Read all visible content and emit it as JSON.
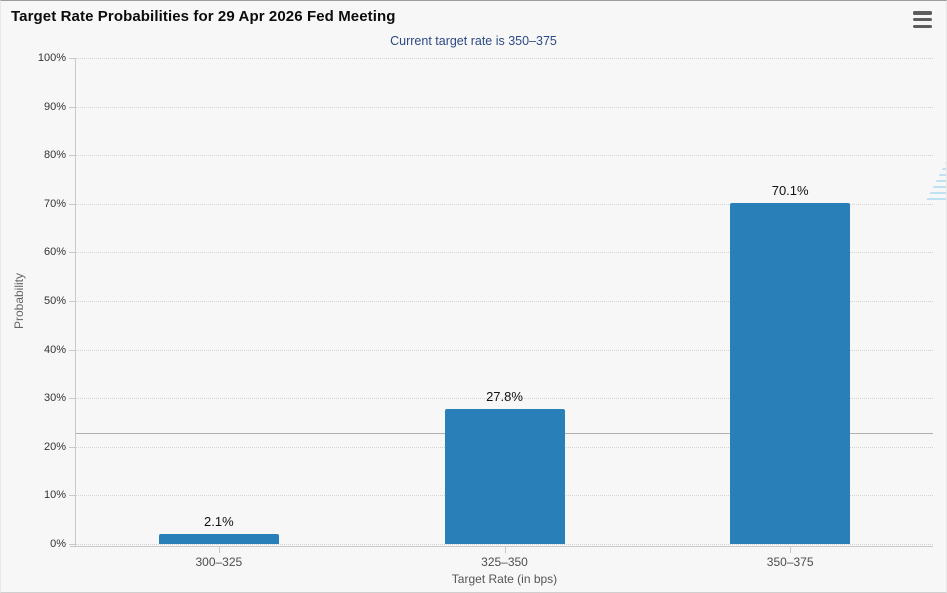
{
  "header": {
    "title": "Target Rate Probabilities for 29 Apr 2026 Fed Meeting",
    "menu_icon": "hamburger-menu-icon"
  },
  "watermark_icon": "quikstrike-q-logo",
  "colors": {
    "bar": "#2980b9",
    "subtitle_text": "#2e4a85",
    "reference_line": "#b0b0b0",
    "background": "#f7f7f7"
  },
  "chart_data": {
    "type": "bar",
    "title": "Target Rate Probabilities for 29 Apr 2026 Fed Meeting",
    "subtitle": "Current target rate is 350–375",
    "categories": [
      "300–325",
      "325–350",
      "350–375"
    ],
    "values": [
      2.1,
      27.8,
      70.1
    ],
    "value_labels": [
      "2.1%",
      "27.8%",
      "70.1%"
    ],
    "xlabel": "Target Rate (in bps)",
    "ylabel": "Probability",
    "ylim": [
      0,
      100
    ],
    "ytick_step": 10,
    "ytick_labels": [
      "0%",
      "10%",
      "20%",
      "30%",
      "40%",
      "50%",
      "60%",
      "70%",
      "80%",
      "90%",
      "100%"
    ],
    "grid": "horizontal dotted lines every 10%",
    "legend": "none",
    "reference_line_pct": 22.8,
    "bar_color": "#2980b9"
  }
}
